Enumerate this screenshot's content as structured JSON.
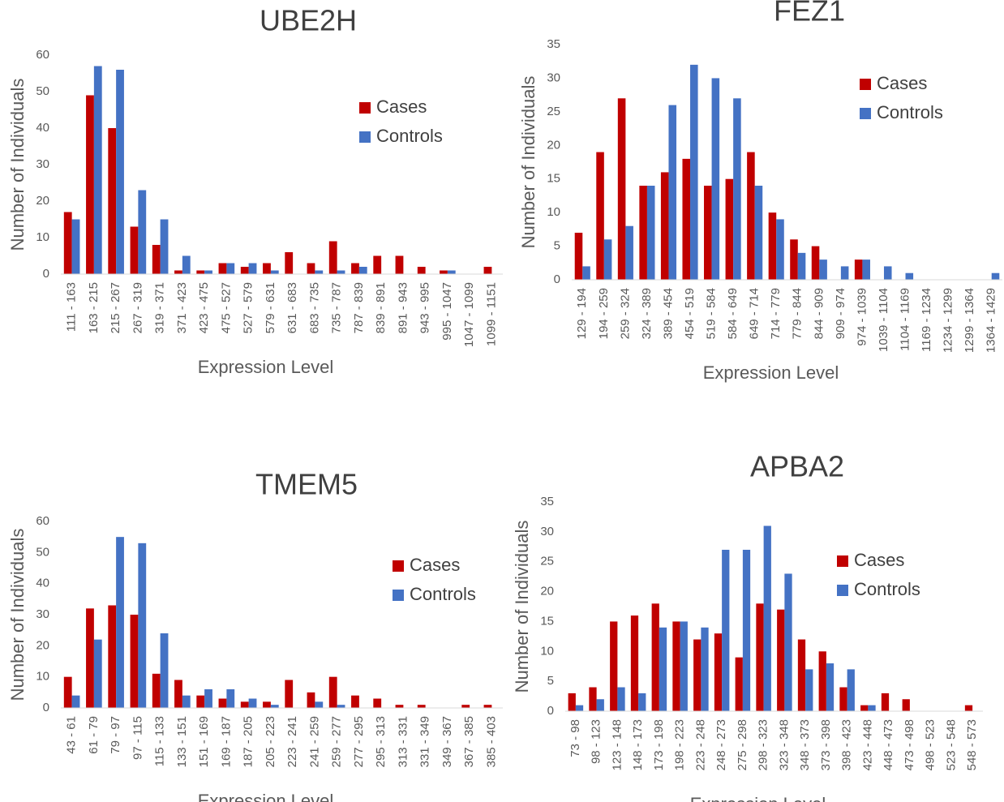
{
  "chart_data": [
    {
      "type": "bar",
      "title": "UBE2H",
      "x_label": "Expression Level",
      "y_label": "Number of Individuals",
      "categories": [
        "111 - 163",
        "163 - 215",
        "215 - 267",
        "267 - 319",
        "319 - 371",
        "371 - 423",
        "423 - 475",
        "475 - 527",
        "527 - 579",
        "579 - 631",
        "631 - 683",
        "683 - 735",
        "735 - 787",
        "787 - 839",
        "839 - 891",
        "891 - 943",
        "943 - 995",
        "995 - 1047",
        "1047 - 1099",
        "1099 - 1151"
      ],
      "series": [
        {
          "name": "Cases",
          "color": "#c00000",
          "values": [
            17,
            49,
            40,
            13,
            8,
            1,
            1,
            3,
            2,
            3,
            6,
            3,
            9,
            3,
            5,
            5,
            2,
            1,
            0,
            2
          ]
        },
        {
          "name": "Controls",
          "color": "#4472c4",
          "values": [
            15,
            57,
            56,
            23,
            15,
            5,
            1,
            3,
            3,
            1,
            0,
            1,
            1,
            2,
            0,
            0,
            0,
            1,
            0,
            0
          ]
        }
      ],
      "ylim": [
        0,
        60
      ],
      "yticks": [
        0,
        10,
        20,
        30,
        40,
        50,
        60
      ],
      "grid": false,
      "legend": "upper right"
    },
    {
      "type": "bar",
      "title": "FEZ1",
      "x_label": "Expression Level",
      "y_label": "Number of Individuals",
      "categories": [
        "129 - 194",
        "194 - 259",
        "259 - 324",
        "324 - 389",
        "389 - 454",
        "454 - 519",
        "519 - 584",
        "584 - 649",
        "649 - 714",
        "714 - 779",
        "779 - 844",
        "844 - 909",
        "909 - 974",
        "974 - 1039",
        "1039 - 1104",
        "1104 - 1169",
        "1169 - 1234",
        "1234 - 1299",
        "1299 - 1364",
        "1364 - 1429"
      ],
      "series": [
        {
          "name": "Cases",
          "color": "#c00000",
          "values": [
            7,
            19,
            27,
            14,
            16,
            18,
            14,
            15,
            19,
            10,
            6,
            5,
            0,
            3,
            0,
            0,
            0,
            0,
            0,
            0
          ]
        },
        {
          "name": "Controls",
          "color": "#4472c4",
          "values": [
            2,
            6,
            8,
            14,
            26,
            32,
            30,
            27,
            14,
            9,
            4,
            3,
            2,
            3,
            2,
            1,
            0,
            0,
            0,
            1
          ]
        }
      ],
      "ylim": [
        0,
        35
      ],
      "yticks": [
        0,
        5,
        10,
        15,
        20,
        25,
        30,
        35
      ],
      "grid": false,
      "legend": "upper right"
    },
    {
      "type": "bar",
      "title": "TMEM5",
      "x_label": "Expression Level",
      "y_label": "Number of Individuals",
      "categories": [
        "43 - 61",
        "61 - 79",
        "79 - 97",
        "97 - 115",
        "115 - 133",
        "133 - 151",
        "151 - 169",
        "169 - 187",
        "187 - 205",
        "205 - 223",
        "223 - 241",
        "241 - 259",
        "259 - 277",
        "277 - 295",
        "295 - 313",
        "313 - 331",
        "331 - 349",
        "349 - 367",
        "367 - 385",
        "385 - 403"
      ],
      "series": [
        {
          "name": "Cases",
          "color": "#c00000",
          "values": [
            10,
            32,
            33,
            30,
            11,
            9,
            4,
            3,
            2,
            2,
            9,
            5,
            10,
            4,
            3,
            1,
            1,
            0,
            1,
            1
          ]
        },
        {
          "name": "Controls",
          "color": "#4472c4",
          "values": [
            4,
            22,
            55,
            53,
            24,
            4,
            6,
            6,
            3,
            1,
            0,
            2,
            1,
            0,
            0,
            0,
            0,
            0,
            0,
            0
          ]
        }
      ],
      "ylim": [
        0,
        60
      ],
      "yticks": [
        0,
        10,
        20,
        30,
        40,
        50,
        60
      ],
      "grid": false,
      "legend": "upper right"
    },
    {
      "type": "bar",
      "title": "APBA2",
      "x_label": "Expression Level",
      "y_label": "Number of Individuals",
      "categories": [
        "73 - 98",
        "98 - 123",
        "123 - 148",
        "148 - 173",
        "173 - 198",
        "198 - 223",
        "223 - 248",
        "248 - 273",
        "275 - 298",
        "298 - 323",
        "323 - 348",
        "348 - 373",
        "373 - 398",
        "398 - 423",
        "423 - 448",
        "448 - 473",
        "473 - 498",
        "498 - 523",
        "523 - 548",
        "548 - 573"
      ],
      "series": [
        {
          "name": "Cases",
          "color": "#c00000",
          "values": [
            3,
            4,
            15,
            16,
            18,
            15,
            12,
            13,
            9,
            18,
            17,
            12,
            10,
            4,
            1,
            3,
            2,
            0,
            0,
            1
          ]
        },
        {
          "name": "Controls",
          "color": "#4472c4",
          "values": [
            1,
            2,
            4,
            3,
            14,
            15,
            14,
            27,
            27,
            31,
            23,
            7,
            8,
            7,
            1,
            0,
            0,
            0,
            0,
            0
          ]
        }
      ],
      "ylim": [
        0,
        35
      ],
      "yticks": [
        0,
        5,
        10,
        15,
        20,
        25,
        30,
        35
      ],
      "grid": false,
      "legend": "upper right"
    }
  ]
}
